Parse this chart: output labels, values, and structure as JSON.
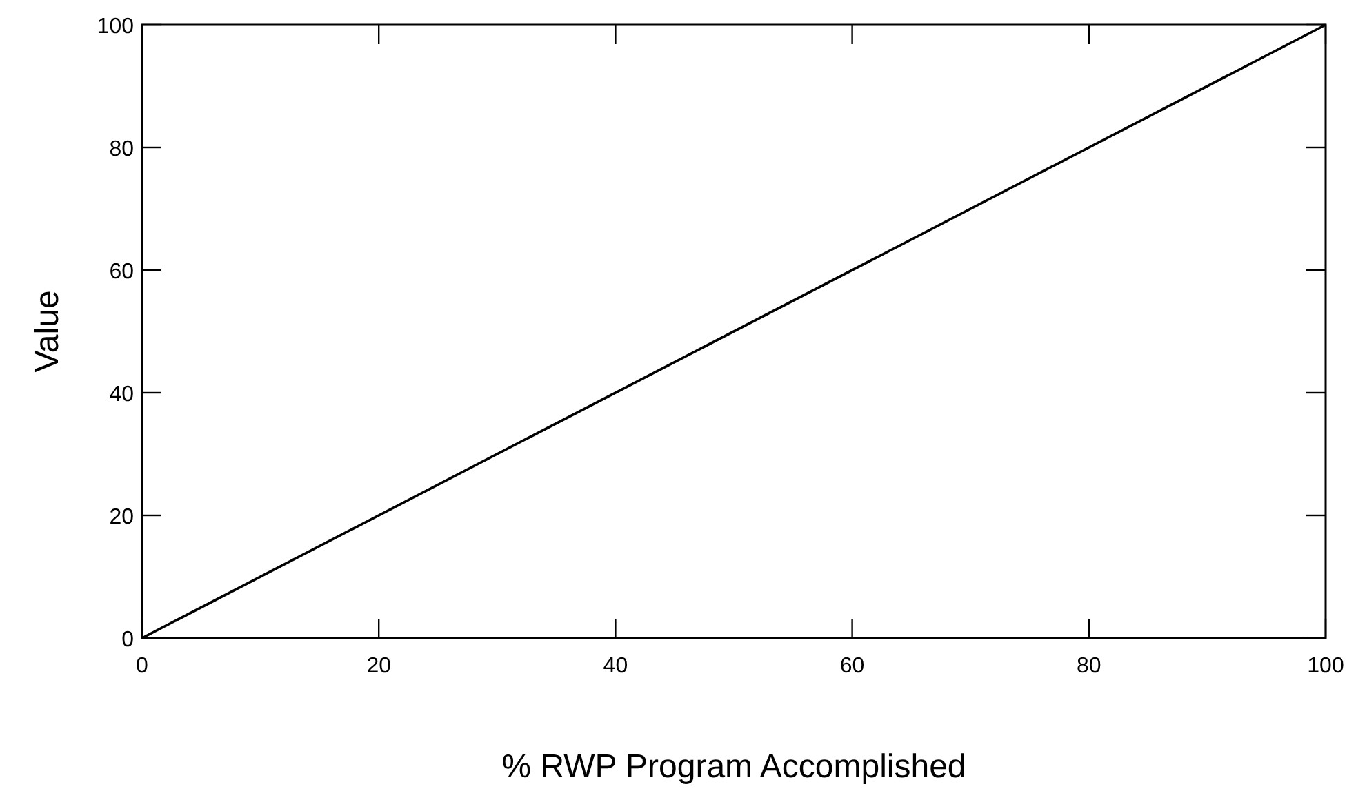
{
  "chart_data": {
    "type": "line",
    "xlabel": "% RWP Program Accomplished",
    "ylabel": "Value",
    "x": [
      0,
      100
    ],
    "series": [
      {
        "color": "#000000",
        "values": [
          0,
          100
        ]
      }
    ],
    "xlim": [
      0,
      100
    ],
    "xticks": [
      0,
      20,
      40,
      60,
      80,
      100
    ],
    "ylim": [
      0,
      100
    ],
    "yticks": [
      0,
      20,
      40,
      60,
      80,
      100
    ],
    "grid": false,
    "marker": "none",
    "line_style": "solid"
  }
}
